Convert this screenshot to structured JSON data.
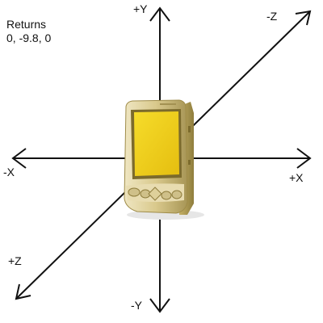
{
  "returns": {
    "title": "Returns",
    "value": "0, -9.8, 0"
  },
  "axes": {
    "pos_y": "+Y",
    "neg_y": "-Y",
    "pos_x": "+X",
    "neg_x": "-X",
    "neg_z": "-Z",
    "pos_z": "+Z"
  },
  "device": {
    "icon": "pocket-pc-device",
    "body_color": "#d8c98a",
    "screen_color": "#f2d21c",
    "frame_color": "#b8a35a"
  },
  "colors": {
    "axis": "#111111",
    "background": "#ffffff"
  }
}
